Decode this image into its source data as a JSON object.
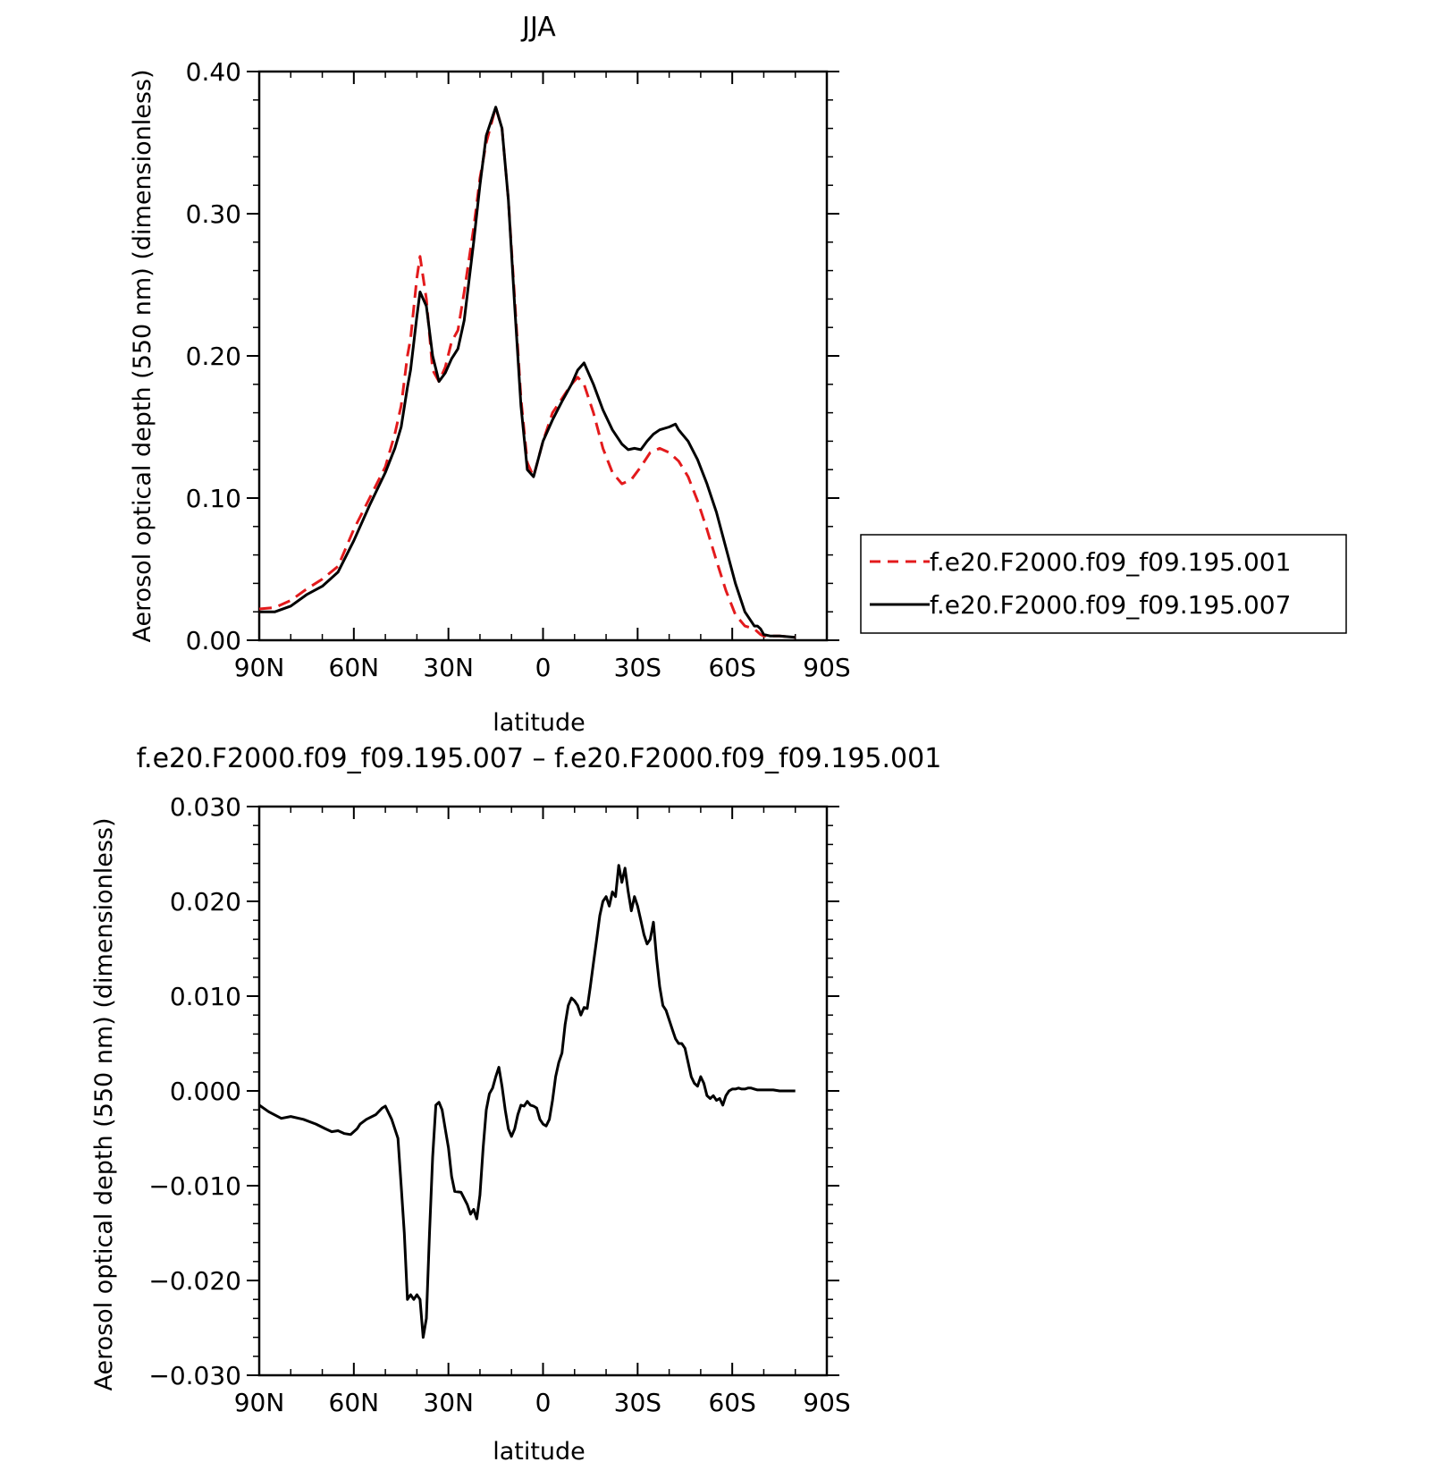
{
  "colors": {
    "series_red": "#e31a1c",
    "series_black": "#000000",
    "frame": "#000000"
  },
  "chart_data": [
    {
      "type": "line",
      "title": "JJA",
      "xlabel": "latitude",
      "ylabel": "Aerosol optical depth (550 nm) (dimensionless)",
      "xlim": [
        90,
        -90
      ],
      "ylim": [
        0.0,
        0.4
      ],
      "x_ticks": [
        90,
        60,
        30,
        0,
        -30,
        -60,
        -90
      ],
      "x_tick_labels": [
        "90N",
        "60N",
        "30N",
        "0",
        "30S",
        "60S",
        "90S"
      ],
      "y_ticks": [
        0.0,
        0.1,
        0.2,
        0.3,
        0.4
      ],
      "y_tick_labels": [
        "0.00",
        "0.10",
        "0.20",
        "0.30",
        "0.40"
      ],
      "legend": {
        "placement": "right-outside"
      },
      "series": [
        {
          "name": "f.e20.F2000.f09_f09.195.001",
          "color": "#e31a1c",
          "dash": "dashed",
          "x": [
            90,
            85,
            80,
            75,
            70,
            65,
            60,
            55,
            50,
            47,
            45,
            43,
            42,
            40,
            39,
            37,
            35,
            33,
            31,
            29,
            27,
            25,
            22,
            20,
            18,
            15,
            13,
            11,
            9,
            7,
            5,
            3,
            0,
            -3,
            -6,
            -9,
            -11,
            -13,
            -16,
            -19,
            -22,
            -25,
            -28,
            -31,
            -34,
            -37,
            -40,
            -43,
            -46,
            -49,
            -52,
            -55,
            -58,
            -61,
            -64,
            -67,
            -68,
            -69,
            -70,
            -72,
            -73,
            -75,
            -80
          ],
          "y": [
            0.022,
            0.023,
            0.028,
            0.036,
            0.043,
            0.052,
            0.078,
            0.1,
            0.122,
            0.145,
            0.165,
            0.2,
            0.212,
            0.255,
            0.27,
            0.24,
            0.19,
            0.182,
            0.192,
            0.21,
            0.218,
            0.245,
            0.29,
            0.325,
            0.35,
            0.375,
            0.36,
            0.31,
            0.24,
            0.17,
            0.125,
            0.115,
            0.14,
            0.16,
            0.17,
            0.18,
            0.185,
            0.18,
            0.16,
            0.135,
            0.118,
            0.11,
            0.113,
            0.122,
            0.132,
            0.135,
            0.132,
            0.126,
            0.115,
            0.098,
            0.078,
            0.056,
            0.035,
            0.018,
            0.01,
            0.008,
            0.006,
            0.004,
            0.003,
            0.003,
            0.003,
            0.003,
            0.002
          ]
        },
        {
          "name": "f.e20.F2000.f09_f09.195.007",
          "color": "#000000",
          "dash": "solid",
          "x": [
            90,
            85,
            80,
            75,
            70,
            65,
            60,
            55,
            50,
            47,
            45,
            43,
            42,
            40,
            39,
            37,
            35,
            33,
            31,
            29,
            27,
            25,
            22,
            20,
            18,
            15,
            13,
            11,
            9,
            7,
            5,
            3,
            0,
            -3,
            -6,
            -9,
            -11,
            -13,
            -16,
            -19,
            -22,
            -25,
            -27,
            -29,
            -31,
            -33,
            -35,
            -37,
            -40,
            -42,
            -43,
            -46,
            -49,
            -52,
            -55,
            -58,
            -61,
            -64,
            -67,
            -68,
            -69,
            -70,
            -72,
            -73,
            -75,
            -80
          ],
          "y": [
            0.02,
            0.02,
            0.024,
            0.032,
            0.038,
            0.048,
            0.07,
            0.095,
            0.118,
            0.135,
            0.15,
            0.178,
            0.19,
            0.228,
            0.245,
            0.235,
            0.2,
            0.182,
            0.188,
            0.198,
            0.205,
            0.225,
            0.28,
            0.32,
            0.355,
            0.375,
            0.36,
            0.31,
            0.235,
            0.165,
            0.12,
            0.115,
            0.14,
            0.155,
            0.168,
            0.18,
            0.19,
            0.195,
            0.18,
            0.162,
            0.148,
            0.138,
            0.134,
            0.135,
            0.134,
            0.14,
            0.145,
            0.148,
            0.15,
            0.152,
            0.148,
            0.14,
            0.127,
            0.11,
            0.09,
            0.065,
            0.04,
            0.02,
            0.01,
            0.01,
            0.008,
            0.004,
            0.003,
            0.003,
            0.003,
            0.002
          ]
        }
      ]
    },
    {
      "type": "line",
      "title": "f.e20.F2000.f09_f09.195.007 – f.e20.F2000.f09_f09.195.001",
      "xlabel": "latitude",
      "ylabel": "Aerosol optical depth (550 nm) (dimensionless)",
      "xlim": [
        90,
        -90
      ],
      "ylim": [
        -0.03,
        0.03
      ],
      "x_ticks": [
        90,
        60,
        30,
        0,
        -30,
        -60,
        -90
      ],
      "x_tick_labels": [
        "90N",
        "60N",
        "30N",
        "0",
        "30S",
        "60S",
        "90S"
      ],
      "y_ticks": [
        -0.03,
        -0.02,
        -0.01,
        0.0,
        0.01,
        0.02,
        0.03
      ],
      "y_tick_labels": [
        "−0.030",
        "−0.020",
        "−0.010",
        "0.000",
        "0.010",
        "0.020",
        "0.030"
      ],
      "series": [
        {
          "color": "#000000",
          "dash": "solid",
          "x": [
            90,
            87,
            83,
            80,
            76,
            72,
            69,
            67,
            65,
            63,
            61,
            59,
            58,
            56,
            53,
            51,
            50,
            48,
            46,
            45,
            44,
            43,
            42,
            41,
            40,
            39,
            38,
            37,
            36,
            35,
            34,
            33,
            32,
            31,
            30,
            29,
            28,
            26,
            24,
            23,
            22,
            21,
            20,
            19,
            18,
            17,
            16,
            15,
            14,
            13,
            12,
            11,
            10,
            9,
            8,
            7,
            6,
            5,
            4,
            3,
            2,
            1,
            0,
            -1,
            -2,
            -3,
            -4,
            -5,
            -6,
            -7,
            -8,
            -9,
            -10,
            -11,
            -12,
            -13,
            -14,
            -15,
            -16,
            -17,
            -18,
            -19,
            -20,
            -21,
            -22,
            -23,
            -24,
            -25,
            -26,
            -27,
            -28,
            -29,
            -30,
            -31,
            -32,
            -33,
            -34,
            -35,
            -36,
            -37,
            -38,
            -39,
            -40,
            -41,
            -42,
            -43,
            -44,
            -45,
            -46,
            -47,
            -48,
            -49,
            -50,
            -51,
            -52,
            -53,
            -54,
            -55,
            -56,
            -57,
            -58,
            -59,
            -60,
            -61,
            -62,
            -63,
            -64,
            -65,
            -66,
            -67,
            -68,
            -69,
            -70,
            -71,
            -72,
            -73,
            -75,
            -77,
            -80
          ],
          "y": [
            -0.0015,
            -0.0022,
            -0.0029,
            -0.0027,
            -0.003,
            -0.0035,
            -0.004,
            -0.0043,
            -0.0042,
            -0.0045,
            -0.0046,
            -0.004,
            -0.0035,
            -0.003,
            -0.0025,
            -0.0018,
            -0.0016,
            -0.003,
            -0.005,
            -0.01,
            -0.015,
            -0.022,
            -0.0215,
            -0.022,
            -0.0215,
            -0.022,
            -0.026,
            -0.024,
            -0.015,
            -0.007,
            -0.0015,
            -0.0012,
            -0.002,
            -0.004,
            -0.006,
            -0.009,
            -0.0106,
            -0.0107,
            -0.012,
            -0.013,
            -0.0125,
            -0.0135,
            -0.011,
            -0.006,
            -0.002,
            -0.0003,
            0.0003,
            0.0015,
            0.0025,
            0.0005,
            -0.002,
            -0.004,
            -0.0048,
            -0.004,
            -0.0025,
            -0.0015,
            -0.0016,
            -0.0011,
            -0.0015,
            -0.0016,
            -0.0018,
            -0.003,
            -0.0035,
            -0.0037,
            -0.003,
            -0.001,
            0.0015,
            0.003,
            0.004,
            0.007,
            0.009,
            0.0098,
            0.0095,
            0.009,
            0.008,
            0.0088,
            0.0087,
            0.011,
            0.0135,
            0.016,
            0.0185,
            0.02,
            0.0205,
            0.0195,
            0.021,
            0.0205,
            0.0238,
            0.022,
            0.0235,
            0.021,
            0.019,
            0.0205,
            0.0195,
            0.018,
            0.0165,
            0.0155,
            0.016,
            0.0178,
            0.014,
            0.011,
            0.009,
            0.0085,
            0.0075,
            0.0065,
            0.0055,
            0.005,
            0.005,
            0.0045,
            0.003,
            0.0015,
            0.0008,
            0.0005,
            0.0015,
            0.0008,
            -0.0005,
            -0.0008,
            -0.0005,
            -0.001,
            -0.0008,
            -0.0015,
            -0.0005,
            0.0,
            0.0002,
            0.0002,
            0.0003,
            0.0002,
            0.0002,
            0.0003,
            0.0003,
            0.0002,
            0.0001,
            0.0001,
            0.0001,
            0.0001,
            0.0001,
            0.0001,
            0.0,
            0.0,
            0.0
          ]
        }
      ]
    }
  ]
}
